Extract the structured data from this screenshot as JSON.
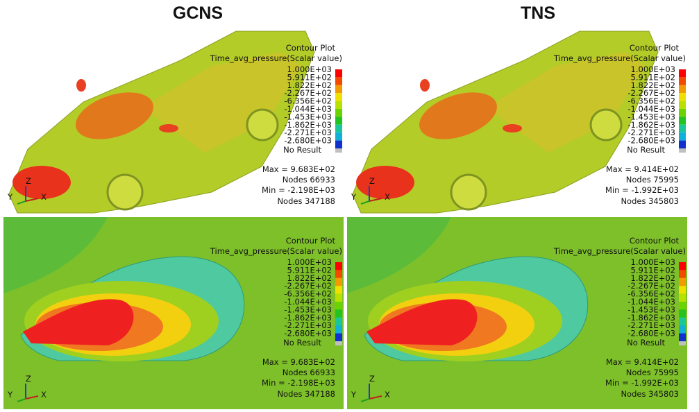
{
  "columns": [
    {
      "title": "GCNS",
      "max": "Max = 9.683E+02",
      "max_nodes": "Nodes 66933",
      "min": "Min = -2.198E+03",
      "min_nodes": "Nodes 347188"
    },
    {
      "title": "TNS",
      "max": "Max = 9.414E+02",
      "max_nodes": "Nodes 75995",
      "min": "Min = -1.992E+03",
      "min_nodes": "Nodes 345803"
    }
  ],
  "legend": {
    "title": "Contour Plot",
    "scalar": "Time_avg_pressure(Scalar value)",
    "levels": [
      "1.000E+03",
      "5.911E+02",
      "1.822E+02",
      "-2.267E+02",
      "-6.356E+02",
      "-1.044E+03",
      "-1.453E+03",
      "-1.862E+03",
      "-2.271E+03",
      "-2.680E+03"
    ],
    "colors": [
      "#ff0000",
      "#f24b00",
      "#f39a00",
      "#f0e000",
      "#b8e000",
      "#6ad400",
      "#21c421",
      "#19c79a",
      "#10b0d8",
      "#1030d0"
    ],
    "no_result": "No Result"
  },
  "axes": {
    "y": "Y",
    "z": "Z",
    "x": "X"
  }
}
